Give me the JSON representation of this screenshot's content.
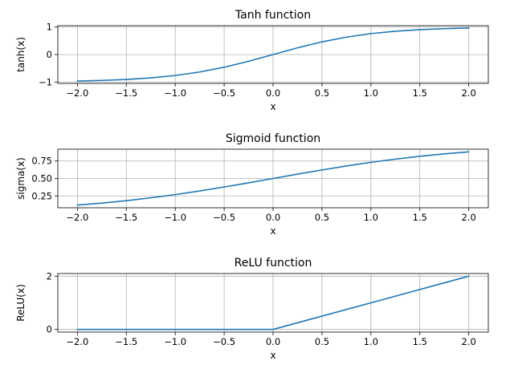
{
  "chart_data": [
    {
      "type": "line",
      "title": "Tanh function",
      "xlabel": "x",
      "ylabel": "tanh(x)",
      "xlim": [
        -2.2,
        2.2
      ],
      "ylim": [
        -1.05,
        1.05
      ],
      "xticks": [
        -2.0,
        -1.5,
        -1.0,
        -0.5,
        0.0,
        0.5,
        1.0,
        1.5,
        2.0
      ],
      "xtick_labels": [
        "−2.0",
        "−1.5",
        "−1.0",
        "−0.5",
        "0.0",
        "0.5",
        "1.0",
        "1.5",
        "2.0"
      ],
      "yticks": [
        -1,
        0,
        1
      ],
      "ytick_labels": [
        "−1",
        "0",
        "1"
      ],
      "grid": true,
      "series": [
        {
          "color": "#1f77b4",
          "x": [
            -2.0,
            -1.75,
            -1.5,
            -1.25,
            -1.0,
            -0.75,
            -0.5,
            -0.25,
            0.0,
            0.25,
            0.5,
            0.75,
            1.0,
            1.25,
            1.5,
            1.75,
            2.0
          ],
          "y": [
            -0.964,
            -0.941,
            -0.905,
            -0.848,
            -0.762,
            -0.635,
            -0.462,
            -0.245,
            0.0,
            0.245,
            0.462,
            0.635,
            0.762,
            0.848,
            0.905,
            0.941,
            0.964
          ]
        }
      ]
    },
    {
      "type": "line",
      "title": "Sigmoid function",
      "xlabel": "x",
      "ylabel": "sigma(x)",
      "xlim": [
        -2.2,
        2.2
      ],
      "ylim": [
        0.081,
        0.919
      ],
      "xticks": [
        -2.0,
        -1.5,
        -1.0,
        -0.5,
        0.0,
        0.5,
        1.0,
        1.5,
        2.0
      ],
      "xtick_labels": [
        "−2.0",
        "−1.5",
        "−1.0",
        "−0.5",
        "0.0",
        "0.5",
        "1.0",
        "1.5",
        "2.0"
      ],
      "yticks": [
        0.25,
        0.5,
        0.75
      ],
      "ytick_labels": [
        "0.25",
        "0.50",
        "0.75"
      ],
      "grid": true,
      "series": [
        {
          "color": "#1f77b4",
          "x": [
            -2.0,
            -1.75,
            -1.5,
            -1.25,
            -1.0,
            -0.75,
            -0.5,
            -0.25,
            0.0,
            0.25,
            0.5,
            0.75,
            1.0,
            1.25,
            1.5,
            1.75,
            2.0
          ],
          "y": [
            0.119,
            0.148,
            0.182,
            0.223,
            0.269,
            0.321,
            0.378,
            0.438,
            0.5,
            0.562,
            0.622,
            0.679,
            0.731,
            0.777,
            0.818,
            0.852,
            0.881
          ]
        }
      ]
    },
    {
      "type": "line",
      "title": "ReLU function",
      "xlabel": "x",
      "ylabel": "ReLU(x)",
      "xlim": [
        -2.2,
        2.2
      ],
      "ylim": [
        -0.1,
        2.1
      ],
      "xticks": [
        -2.0,
        -1.5,
        -1.0,
        -0.5,
        0.0,
        0.5,
        1.0,
        1.5,
        2.0
      ],
      "xtick_labels": [
        "−2.0",
        "−1.5",
        "−1.0",
        "−0.5",
        "0.0",
        "0.5",
        "1.0",
        "1.5",
        "2.0"
      ],
      "yticks": [
        0,
        2
      ],
      "ytick_labels": [
        "0",
        "2"
      ],
      "grid": true,
      "series": [
        {
          "color": "#1f77b4",
          "x": [
            -2.0,
            0.0,
            2.0
          ],
          "y": [
            0.0,
            0.0,
            2.0
          ]
        }
      ]
    }
  ]
}
